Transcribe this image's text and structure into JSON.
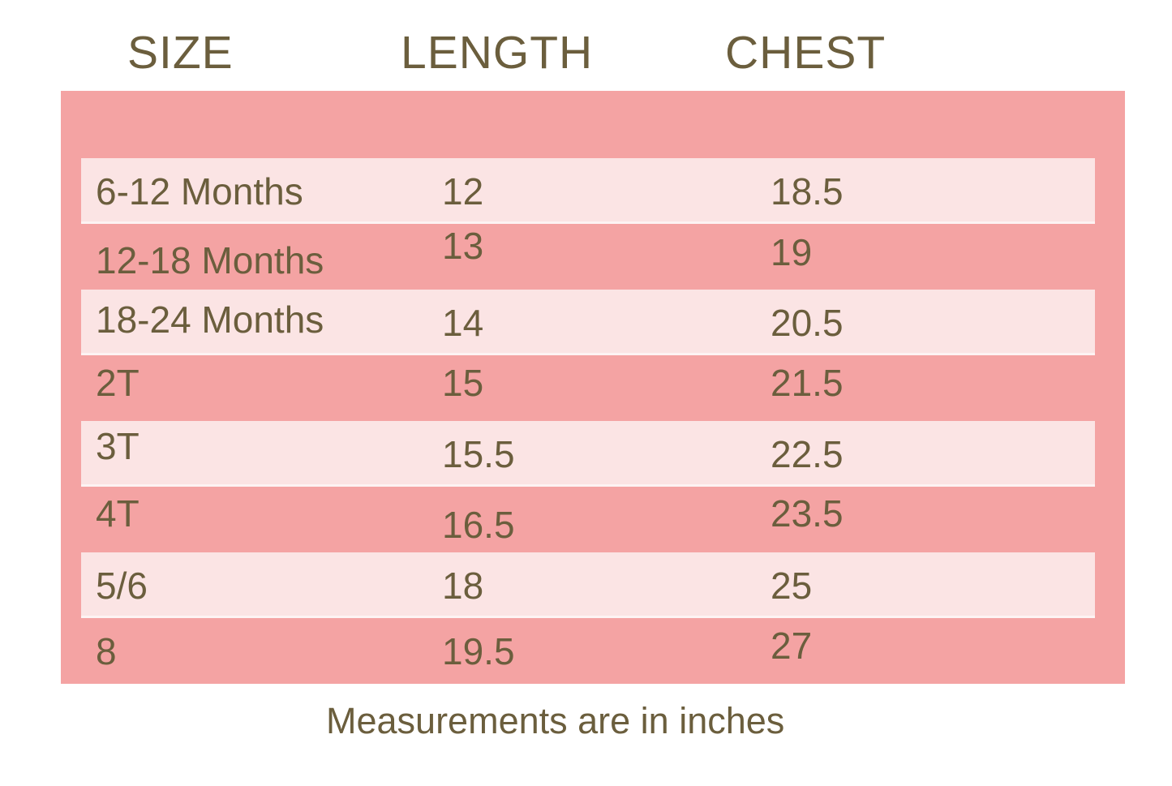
{
  "colors": {
    "background": "#FFFFFF",
    "panel_pink": "#F4A3A3",
    "stripe_pink": "#FBE4E4",
    "text_olive": "#6B5E3D"
  },
  "chart_data": {
    "type": "table",
    "columns": [
      "SIZE",
      "LENGTH",
      "CHEST"
    ],
    "rows": [
      {
        "size": "6-12 Months",
        "length": 12,
        "chest": 18.5
      },
      {
        "size": "12-18 Months",
        "length": 13,
        "chest": 19
      },
      {
        "size": "18-24 Months",
        "length": 14,
        "chest": 20.5
      },
      {
        "size": "2T",
        "length": 15,
        "chest": 21.5
      },
      {
        "size": "3T",
        "length": 15.5,
        "chest": 22.5
      },
      {
        "size": "4T",
        "length": 16.5,
        "chest": 23.5
      },
      {
        "size": "5/6",
        "length": 18,
        "chest": 25
      },
      {
        "size": "8",
        "length": 19.5,
        "chest": 27
      }
    ],
    "footnote": "Measurements are in inches",
    "layout": {
      "stripe_pattern": "alternating, light stripe on rows 1,3,5,7",
      "grid": "off",
      "legend": "none"
    }
  }
}
